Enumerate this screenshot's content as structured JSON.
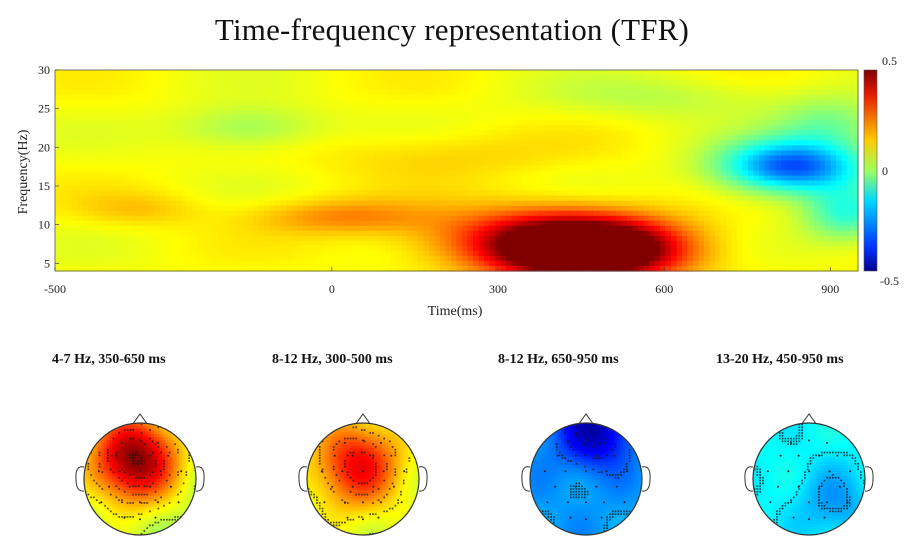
{
  "title": "Time-frequency representation (TFR)",
  "chart_data": [
    {
      "type": "heatmap",
      "title": "Time-frequency representation (TFR)",
      "xlabel": "Time(ms)",
      "ylabel": "Frequency(Hz)",
      "xlim": [
        -500,
        950
      ],
      "ylim": [
        4,
        30
      ],
      "x_ticks": [
        "-500",
        "0",
        "300",
        "600",
        "900"
      ],
      "y_ticks": [
        "5",
        "10",
        "15",
        "20",
        "25",
        "30"
      ],
      "colorbar": {
        "min": -0.5,
        "max": 0.5,
        "ticks": [
          "0.5",
          "0",
          "-0.5"
        ],
        "colormap": "jet"
      },
      "baseline": 0.12,
      "features": [
        {
          "t_center": 460,
          "f_center": 6.5,
          "t_width": 110,
          "f_width": 2.6,
          "value": 0.62
        },
        {
          "t_center": 380,
          "f_center": 8.5,
          "t_width": 150,
          "f_width": 2.8,
          "value": 0.22
        },
        {
          "t_center": 830,
          "f_center": 17.5,
          "t_width": 90,
          "f_width": 2.4,
          "value": -0.42
        },
        {
          "t_center": 930,
          "f_center": 11.5,
          "t_width": 55,
          "f_width": 2.5,
          "value": -0.2
        },
        {
          "t_center": 900,
          "f_center": 23,
          "t_width": 70,
          "f_width": 2.5,
          "value": -0.12
        },
        {
          "t_center": -150,
          "f_center": 22.5,
          "t_width": 90,
          "f_width": 2.0,
          "value": -0.1
        },
        {
          "t_center": 20,
          "f_center": 11,
          "t_width": 110,
          "f_width": 1.6,
          "value": 0.12
        },
        {
          "t_center": 200,
          "f_center": 19,
          "t_width": 160,
          "f_width": 2.2,
          "value": 0.05
        },
        {
          "t_center": -350,
          "f_center": 12,
          "t_width": 80,
          "f_width": 1.6,
          "value": 0.06
        },
        {
          "t_center": 600,
          "f_center": 26.5,
          "t_width": 150,
          "f_width": 2.0,
          "value": -0.06
        }
      ]
    },
    {
      "type": "topoplot",
      "maps": [
        {
          "title": "4-7 Hz, 350-650 ms",
          "peak_value": 0.5,
          "peak_x": -0.1,
          "peak_y": 0.35,
          "spread": 0.55,
          "offset": 0.05
        },
        {
          "title": "8-12 Hz, 300-500 ms",
          "peak_value": 0.38,
          "peak_x": -0.1,
          "peak_y": 0.25,
          "spread": 0.55,
          "offset": 0.08
        },
        {
          "title": "8-12 Hz, 650-950 ms",
          "peak_value": -0.45,
          "peak_x": 0.15,
          "peak_y": 0.85,
          "spread": 0.45,
          "offset": -0.22
        },
        {
          "title": "13-20 Hz, 450-950 ms",
          "peak_value": -0.22,
          "peak_x": 0.45,
          "peak_y": -0.45,
          "spread": 0.5,
          "offset": -0.12
        }
      ]
    }
  ]
}
